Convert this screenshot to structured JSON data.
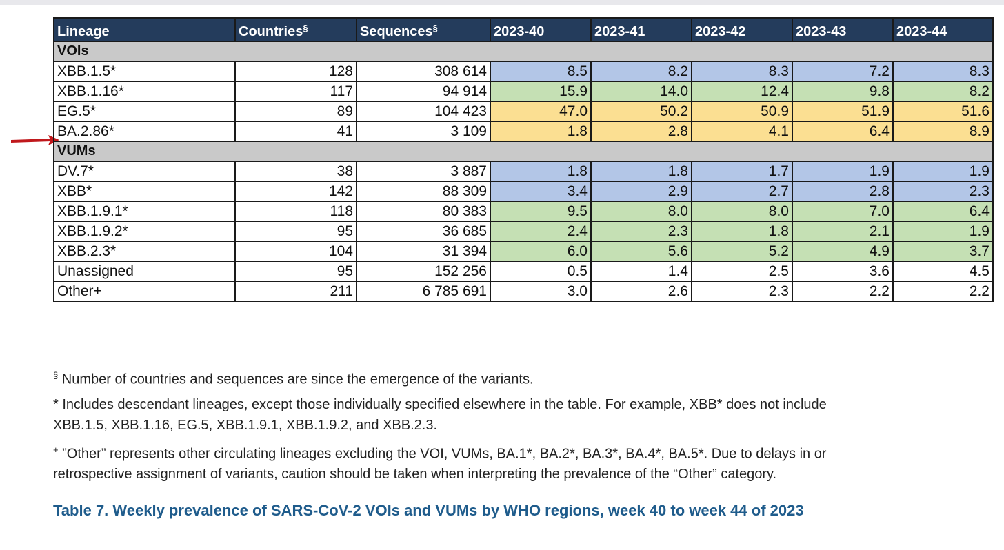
{
  "table": {
    "headers": {
      "lineage": "Lineage",
      "countries": "Countries",
      "countries_mark": "§",
      "sequences": "Sequences",
      "sequences_mark": "§",
      "weeks": [
        "2023-40",
        "2023-41",
        "2023-42",
        "2023-43",
        "2023-44"
      ]
    },
    "groups": [
      {
        "label": "VOIs",
        "rows": [
          {
            "lineage": "XBB.1.5*",
            "countries": "128",
            "sequences": "308 614",
            "values": [
              "8.5",
              "8.2",
              "8.3",
              "7.2",
              "8.3"
            ],
            "color": "#b3c6e7"
          },
          {
            "lineage": "XBB.1.16*",
            "countries": "117",
            "sequences": "94 914",
            "values": [
              "15.9",
              "14.0",
              "12.4",
              "9.8",
              "8.2"
            ],
            "color": "#c5e0b4"
          },
          {
            "lineage": "EG.5*",
            "countries": "89",
            "sequences": "104 423",
            "values": [
              "47.0",
              "50.2",
              "50.9",
              "51.9",
              "51.6"
            ],
            "color": "#fbdf92"
          },
          {
            "lineage": "BA.2.86*",
            "countries": "41",
            "sequences": "3 109",
            "values": [
              "1.8",
              "2.8",
              "4.1",
              "6.4",
              "8.9"
            ],
            "color": "#fbdf92"
          }
        ]
      },
      {
        "label": "VUMs",
        "rows": [
          {
            "lineage": "DV.7*",
            "countries": "38",
            "sequences": "3 887",
            "values": [
              "1.8",
              "1.8",
              "1.7",
              "1.9",
              "1.9"
            ],
            "color": "#b3c6e7"
          },
          {
            "lineage": "XBB*",
            "countries": "142",
            "sequences": "88 309",
            "values": [
              "3.4",
              "2.9",
              "2.7",
              "2.8",
              "2.3"
            ],
            "color": "#b3c6e7"
          },
          {
            "lineage": "XBB.1.9.1*",
            "countries": "118",
            "sequences": "80 383",
            "values": [
              "9.5",
              "8.0",
              "8.0",
              "7.0",
              "6.4"
            ],
            "color": "#c5e0b4"
          },
          {
            "lineage": "XBB.1.9.2*",
            "countries": "95",
            "sequences": "36 685",
            "values": [
              "2.4",
              "2.3",
              "1.8",
              "2.1",
              "1.9"
            ],
            "color": "#c5e0b4"
          },
          {
            "lineage": "XBB.2.3*",
            "countries": "104",
            "sequences": "31 394",
            "values": [
              "6.0",
              "5.6",
              "5.2",
              "4.9",
              "3.7"
            ],
            "color": "#c5e0b4"
          },
          {
            "lineage": "Unassigned",
            "countries": "95",
            "sequences": "152 256",
            "values": [
              "0.5",
              "1.4",
              "2.5",
              "3.6",
              "4.5"
            ],
            "color": ""
          },
          {
            "lineage": "Other+",
            "countries": "211",
            "sequences": "6 785 691",
            "values": [
              "3.0",
              "2.6",
              "2.3",
              "2.2",
              "2.2"
            ],
            "color": ""
          }
        ]
      }
    ]
  },
  "footnotes": {
    "section_mark": "§",
    "section_text": "Number of countries and sequences are since the emergence of the variants.",
    "asterisk_line1": "* Includes descendant lineages, except those individually specified elsewhere in the table. For example, XBB* does not include",
    "asterisk_line2": "XBB.1.5, XBB.1.16, EG.5, XBB.1.9.1, XBB.1.9.2, and XBB.2.3.",
    "plus_mark": "+",
    "plus_line1": " ”Other” represents other circulating lineages excluding the VOI, VUMs, BA.1*, BA.2*, BA.3*, BA.4*, BA.5*. Due to delays in or",
    "plus_line2": "retrospective assignment of variants, caution should be taken when interpreting the prevalence of the “Other” category."
  },
  "caption": "Table 7. Weekly prevalence of SARS-CoV-2 VOIs and VUMs by WHO regions, week 40 to week 44 of 2023",
  "annotations": {
    "arrow_color": "#c0181c",
    "bar_color": "#c0181c"
  }
}
